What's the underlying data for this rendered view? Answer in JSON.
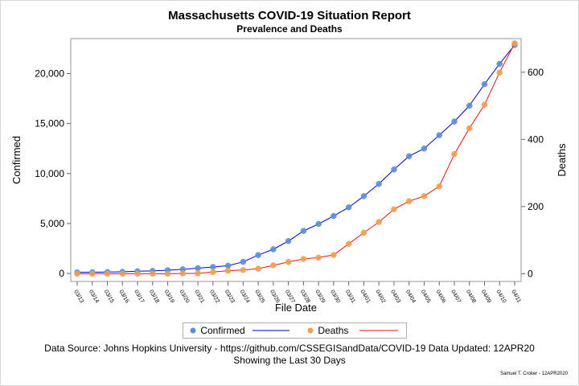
{
  "title": "Massachusetts COVID-19 Situation Report",
  "subtitle": "Prevalence and Deaths",
  "footer": {
    "source": "Data Source: Johns Hopkins University - https://github.com/CSSEGISandData/COVID-19  Data Updated: 12APR20",
    "showing": "Showing the Last 30 Days",
    "credit": "Samuel T. Croker - 12APR2020"
  },
  "chart_data": {
    "type": "line",
    "xlabel": "File Date",
    "ylabel_left": "Confirmed",
    "ylabel_right": "Deaths",
    "categories": [
      "03/13",
      "03/14",
      "03/15",
      "03/16",
      "03/17",
      "03/18",
      "03/19",
      "03/20",
      "03/21",
      "03/22",
      "03/23",
      "03/24",
      "03/25",
      "03/26",
      "03/27",
      "03/28",
      "03/29",
      "03/30",
      "03/31",
      "04/01",
      "04/02",
      "04/03",
      "04/04",
      "04/05",
      "04/06",
      "04/07",
      "04/08",
      "04/09",
      "04/10",
      "04/11"
    ],
    "left_ticks": [
      0,
      5000,
      10000,
      15000,
      20000
    ],
    "left_tick_labels": [
      "0",
      "5,000",
      "10,000",
      "15,000",
      "20,000"
    ],
    "right_ticks": [
      0,
      200,
      400,
      600
    ],
    "right_tick_labels": [
      "0",
      "200",
      "400",
      "600"
    ],
    "ylim_left": [
      -800,
      23500
    ],
    "ylim_right": [
      -23,
      700
    ],
    "grid": false,
    "legend_position": "bottom",
    "series": [
      {
        "name": "Confirmed",
        "axis": "left",
        "marker_color": "#5b8fd6",
        "line_color": "#0000cc",
        "values": [
          108,
          123,
          138,
          164,
          218,
          256,
          328,
          413,
          525,
          646,
          777,
          1159,
          1838,
          2417,
          3240,
          4257,
          4955,
          5752,
          6620,
          7738,
          8966,
          10402,
          11736,
          12500,
          13837,
          15202,
          16790,
          18941,
          20974,
          22860
        ]
      },
      {
        "name": "Deaths",
        "axis": "right",
        "marker_color": "#f0a050",
        "line_color": "#ee1111",
        "values": [
          0,
          0,
          0,
          0,
          0,
          0,
          0,
          1,
          1,
          5,
          9,
          11,
          15,
          25,
          35,
          44,
          48,
          56,
          89,
          122,
          154,
          192,
          216,
          231,
          260,
          356,
          433,
          503,
          599,
          686
        ]
      }
    ]
  }
}
